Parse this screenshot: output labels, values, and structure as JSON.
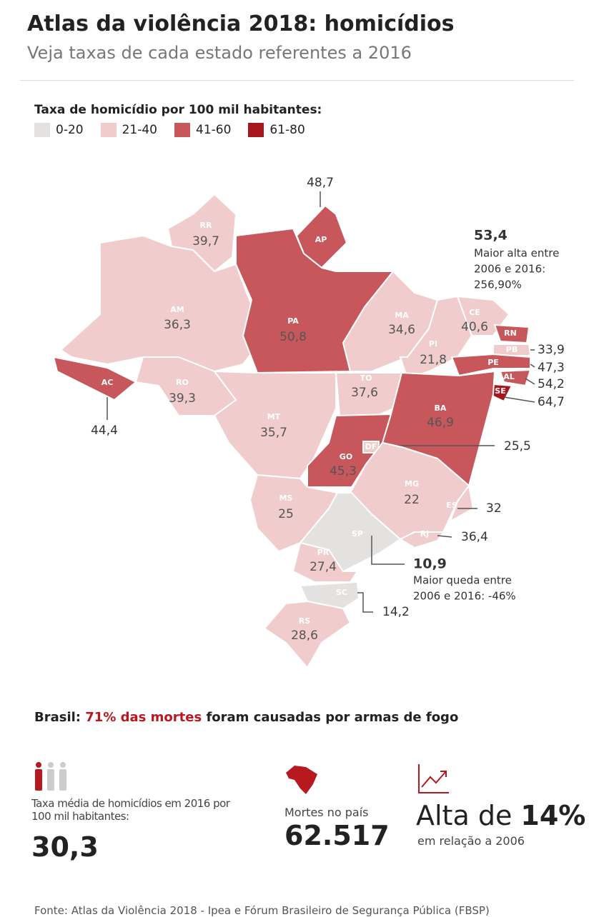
{
  "header": {
    "title": "Atlas da violência 2018: homicídios",
    "subtitle": "Veja taxas de cada estado referentes a 2016"
  },
  "legend": {
    "title": "Taxa de homicídio por 100 mil habitantes:",
    "items": [
      {
        "label": "0-20",
        "color": "#e4e2e0"
      },
      {
        "label": "21-40",
        "color": "#f0cccc"
      },
      {
        "label": "41-60",
        "color": "#c8575c"
      },
      {
        "label": "61-80",
        "color": "#a5161d"
      }
    ]
  },
  "states": [
    {
      "code": "RR",
      "value": "39,7",
      "color": "#f0cccc"
    },
    {
      "code": "AP",
      "value": "48,7",
      "color": "#c8575c"
    },
    {
      "code": "AM",
      "value": "36,3",
      "color": "#f0cccc"
    },
    {
      "code": "PA",
      "value": "50,8",
      "color": "#c8575c"
    },
    {
      "code": "AC",
      "value": "44,4",
      "color": "#c8575c"
    },
    {
      "code": "RO",
      "value": "39,3",
      "color": "#f0cccc"
    },
    {
      "code": "MT",
      "value": "35,7",
      "color": "#f0cccc"
    },
    {
      "code": "MA",
      "value": "34,6",
      "color": "#f0cccc"
    },
    {
      "code": "PI",
      "value": "21,8",
      "color": "#f0cccc"
    },
    {
      "code": "CE",
      "value": "40,6",
      "color": "#f0cccc"
    },
    {
      "code": "RN",
      "value": "53,4",
      "color": "#c8575c"
    },
    {
      "code": "PB",
      "value": "33,9",
      "color": "#f0cccc"
    },
    {
      "code": "PE",
      "value": "47,3",
      "color": "#c8575c"
    },
    {
      "code": "AL",
      "value": "54,2",
      "color": "#c8575c"
    },
    {
      "code": "SE",
      "value": "64,7",
      "color": "#a5161d"
    },
    {
      "code": "TO",
      "value": "37,6",
      "color": "#f0cccc"
    },
    {
      "code": "BA",
      "value": "46,9",
      "color": "#c8575c"
    },
    {
      "code": "GO",
      "value": "45,3",
      "color": "#c8575c"
    },
    {
      "code": "DF",
      "value": "25,5",
      "color": "#f0cccc"
    },
    {
      "code": "MG",
      "value": "22",
      "color": "#f0cccc"
    },
    {
      "code": "ES",
      "value": "32",
      "color": "#f0cccc"
    },
    {
      "code": "RJ",
      "value": "36,4",
      "color": "#f0cccc"
    },
    {
      "code": "MS",
      "value": "25",
      "color": "#f0cccc"
    },
    {
      "code": "SP",
      "value": "10,9",
      "color": "#e4e2e0"
    },
    {
      "code": "PR",
      "value": "27,4",
      "color": "#f0cccc"
    },
    {
      "code": "SC",
      "value": "14,2",
      "color": "#e4e2e0"
    },
    {
      "code": "RS",
      "value": "28,6",
      "color": "#f0cccc"
    }
  ],
  "notes": [
    {
      "lines": [
        "Maior alta entre",
        "2006 e 2016:",
        "256,90%"
      ]
    },
    {
      "lines": [
        "Maior queda entre",
        "2006 e 2016: -46%"
      ]
    }
  ],
  "headline": {
    "lead": "Brasil:",
    "highlight": "71% das mortes",
    "rest": "foram causadas por armas de fogo"
  },
  "stats": {
    "rate": {
      "label": "Taxa média de homicídios em 2016 por 100 mil habitantes:",
      "value": "30,3"
    },
    "deaths": {
      "label": "Mortes no país",
      "value": "62.517"
    },
    "rise": {
      "prefix": "Alta de",
      "value": "14%",
      "label": "em relação a 2006"
    }
  },
  "footer": "Fonte: Atlas da Violência 2018 - Ipea e Fórum Brasileiro de Segurança Pública (FBSP)"
}
